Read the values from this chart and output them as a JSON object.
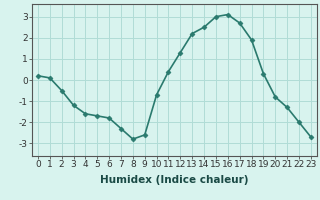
{
  "x": [
    0,
    1,
    2,
    3,
    4,
    5,
    6,
    7,
    8,
    9,
    10,
    11,
    12,
    13,
    14,
    15,
    16,
    17,
    18,
    19,
    20,
    21,
    22,
    23
  ],
  "y": [
    0.2,
    0.1,
    -0.5,
    -1.2,
    -1.6,
    -1.7,
    -1.8,
    -2.3,
    -2.8,
    -2.6,
    -0.7,
    0.4,
    1.3,
    2.2,
    2.5,
    3.0,
    3.1,
    2.7,
    1.9,
    0.3,
    -0.8,
    -1.3,
    -2.0,
    -2.7
  ],
  "line_color": "#2a7a6e",
  "marker": "D",
  "marker_size": 2.5,
  "bg_color": "#d8f3ee",
  "grid_color": "#b0dcd6",
  "xlabel": "Humidex (Indice chaleur)",
  "xlabel_fontsize": 7.5,
  "xlim": [
    -0.5,
    23.5
  ],
  "ylim": [
    -3.6,
    3.6
  ],
  "yticks": [
    -3,
    -2,
    -1,
    0,
    1,
    2,
    3
  ],
  "xticks": [
    0,
    1,
    2,
    3,
    4,
    5,
    6,
    7,
    8,
    9,
    10,
    11,
    12,
    13,
    14,
    15,
    16,
    17,
    18,
    19,
    20,
    21,
    22,
    23
  ],
  "tick_fontsize": 6.5,
  "line_width": 1.2
}
